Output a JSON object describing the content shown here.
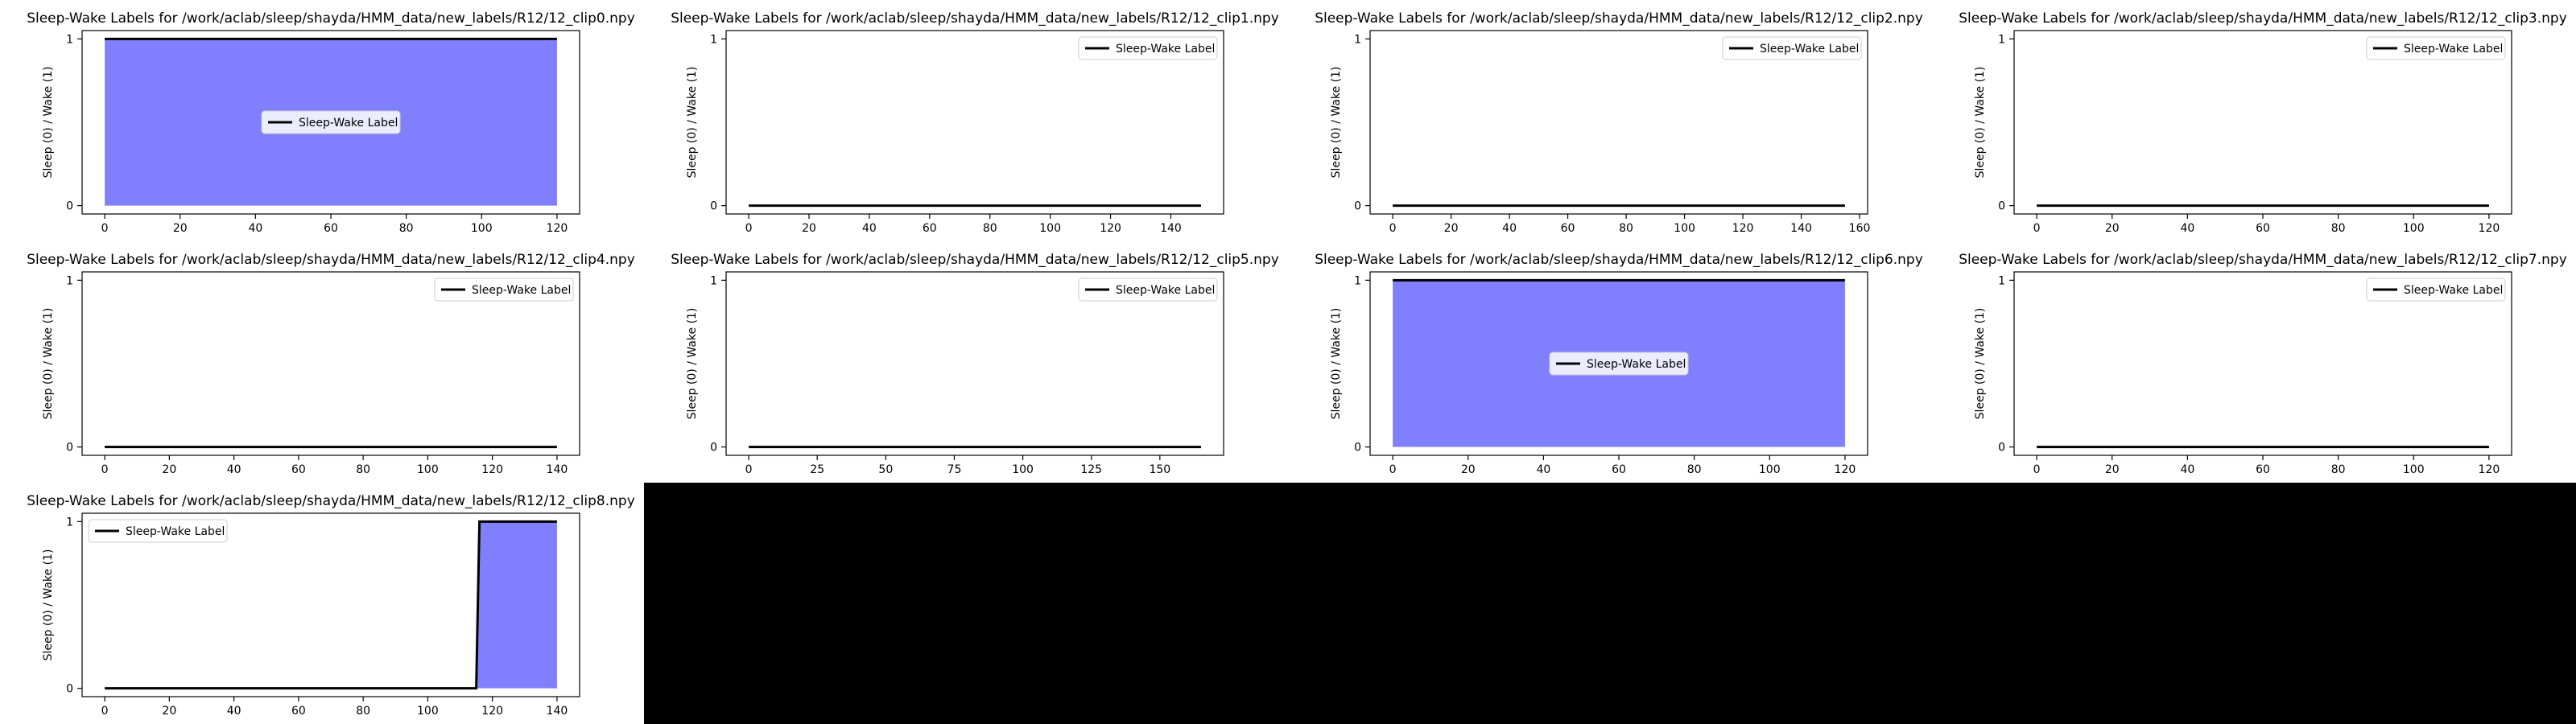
{
  "figure": {
    "background": "#ffffff",
    "fill_color": "#8080ff",
    "line_color": "#000000"
  },
  "chart_data": [
    {
      "type": "line",
      "title": "Sleep-Wake Labels for /work/aclab/sleep/shayda/HMM_data/new_labels/R12/12_clip0.npy",
      "ylabel": "Sleep (0) / Wake (1)",
      "xlim": [
        -6,
        126
      ],
      "ylim": [
        -0.05,
        1.05
      ],
      "xticks": [
        0,
        20,
        40,
        60,
        80,
        100,
        120
      ],
      "yticks": [
        0,
        1
      ],
      "legend": "center",
      "series": [
        {
          "name": "Sleep-Wake Label",
          "points": [
            [
              0,
              1
            ],
            [
              120,
              1
            ]
          ]
        }
      ]
    },
    {
      "type": "line",
      "title": "Sleep-Wake Labels for /work/aclab/sleep/shayda/HMM_data/new_labels/R12/12_clip1.npy",
      "ylabel": "Sleep (0) / Wake (1)",
      "xlim": [
        -7.5,
        157.5
      ],
      "ylim": [
        -0.05,
        1.05
      ],
      "xticks": [
        0,
        20,
        40,
        60,
        80,
        100,
        120,
        140
      ],
      "yticks": [
        0,
        1
      ],
      "legend": "top-right",
      "series": [
        {
          "name": "Sleep-Wake Label",
          "points": [
            [
              0,
              0
            ],
            [
              150,
              0
            ]
          ]
        }
      ]
    },
    {
      "type": "line",
      "title": "Sleep-Wake Labels for /work/aclab/sleep/shayda/HMM_data/new_labels/R12/12_clip2.npy",
      "ylabel": "Sleep (0) / Wake (1)",
      "xlim": [
        -7.75,
        162.75
      ],
      "ylim": [
        -0.05,
        1.05
      ],
      "xticks": [
        0,
        20,
        40,
        60,
        80,
        100,
        120,
        140,
        160
      ],
      "yticks": [
        0,
        1
      ],
      "legend": "top-right",
      "series": [
        {
          "name": "Sleep-Wake Label",
          "points": [
            [
              0,
              0
            ],
            [
              155,
              0
            ]
          ]
        }
      ]
    },
    {
      "type": "line",
      "title": "Sleep-Wake Labels for /work/aclab/sleep/shayda/HMM_data/new_labels/R12/12_clip3.npy",
      "ylabel": "Sleep (0) / Wake (1)",
      "xlim": [
        -6,
        126
      ],
      "ylim": [
        -0.05,
        1.05
      ],
      "xticks": [
        0,
        20,
        40,
        60,
        80,
        100,
        120
      ],
      "yticks": [
        0,
        1
      ],
      "legend": "top-right",
      "series": [
        {
          "name": "Sleep-Wake Label",
          "points": [
            [
              0,
              0
            ],
            [
              120,
              0
            ]
          ]
        }
      ]
    },
    {
      "type": "line",
      "title": "Sleep-Wake Labels for /work/aclab/sleep/shayda/HMM_data/new_labels/R12/12_clip4.npy",
      "ylabel": "Sleep (0) / Wake (1)",
      "xlim": [
        -7,
        147
      ],
      "ylim": [
        -0.05,
        1.05
      ],
      "xticks": [
        0,
        20,
        40,
        60,
        80,
        100,
        120,
        140
      ],
      "yticks": [
        0,
        1
      ],
      "legend": "top-right",
      "series": [
        {
          "name": "Sleep-Wake Label",
          "points": [
            [
              0,
              0
            ],
            [
              140,
              0
            ]
          ]
        }
      ]
    },
    {
      "type": "line",
      "title": "Sleep-Wake Labels for /work/aclab/sleep/shayda/HMM_data/new_labels/R12/12_clip5.npy",
      "ylabel": "Sleep (0) / Wake (1)",
      "xlim": [
        -8.25,
        173.25
      ],
      "ylim": [
        -0.05,
        1.05
      ],
      "xticks": [
        0,
        25,
        50,
        75,
        100,
        125,
        150
      ],
      "yticks": [
        0,
        1
      ],
      "legend": "top-right",
      "series": [
        {
          "name": "Sleep-Wake Label",
          "points": [
            [
              0,
              0
            ],
            [
              165,
              0
            ]
          ]
        }
      ]
    },
    {
      "type": "line",
      "title": "Sleep-Wake Labels for /work/aclab/sleep/shayda/HMM_data/new_labels/R12/12_clip6.npy",
      "ylabel": "Sleep (0) / Wake (1)",
      "xlim": [
        -6,
        126
      ],
      "ylim": [
        -0.05,
        1.05
      ],
      "xticks": [
        0,
        20,
        40,
        60,
        80,
        100,
        120
      ],
      "yticks": [
        0,
        1
      ],
      "legend": "center",
      "series": [
        {
          "name": "Sleep-Wake Label",
          "points": [
            [
              0,
              1
            ],
            [
              120,
              1
            ]
          ]
        }
      ]
    },
    {
      "type": "line",
      "title": "Sleep-Wake Labels for /work/aclab/sleep/shayda/HMM_data/new_labels/R12/12_clip7.npy",
      "ylabel": "Sleep (0) / Wake (1)",
      "xlim": [
        -6,
        126
      ],
      "ylim": [
        -0.05,
        1.05
      ],
      "xticks": [
        0,
        20,
        40,
        60,
        80,
        100,
        120
      ],
      "yticks": [
        0,
        1
      ],
      "legend": "top-right",
      "series": [
        {
          "name": "Sleep-Wake Label",
          "points": [
            [
              0,
              0
            ],
            [
              120,
              0
            ]
          ]
        }
      ]
    },
    {
      "type": "line",
      "title": "Sleep-Wake Labels for /work/aclab/sleep/shayda/HMM_data/new_labels/R12/12_clip8.npy",
      "ylabel": "Sleep (0) / Wake (1)",
      "xlim": [
        -7,
        147
      ],
      "ylim": [
        -0.05,
        1.05
      ],
      "xticks": [
        0,
        20,
        40,
        60,
        80,
        100,
        120,
        140
      ],
      "yticks": [
        0,
        1
      ],
      "legend": "top-left",
      "series": [
        {
          "name": "Sleep-Wake Label",
          "points": [
            [
              0,
              0
            ],
            [
              115,
              0
            ],
            [
              116,
              1
            ],
            [
              140,
              1
            ]
          ]
        }
      ]
    }
  ]
}
